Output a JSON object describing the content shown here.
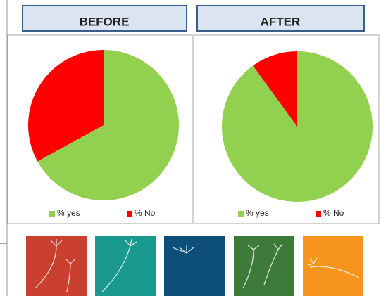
{
  "chart_data": [
    {
      "type": "pie",
      "title": "BEFORE",
      "categories": [
        "% yes",
        "% No"
      ],
      "values": [
        67,
        33
      ],
      "colors": [
        "#92d050",
        "#ff0000"
      ],
      "legend": "bottom"
    },
    {
      "type": "pie",
      "title": "AFTER",
      "categories": [
        "% yes",
        "% No"
      ],
      "values": [
        90,
        10
      ],
      "colors": [
        "#92d050",
        "#ff0000"
      ],
      "legend": "bottom"
    }
  ]
}
